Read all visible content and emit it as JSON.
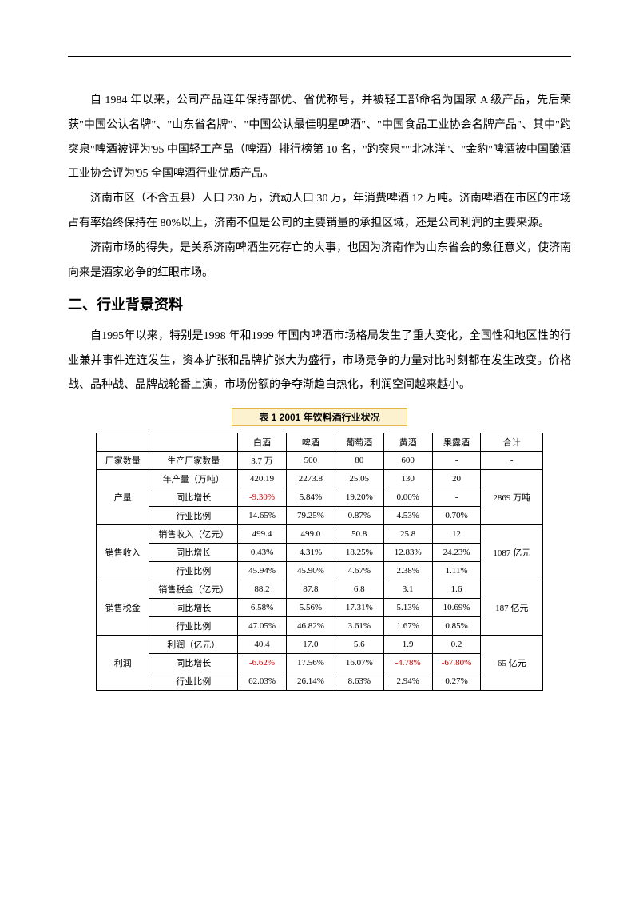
{
  "paragraphs": {
    "p1": "自 1984 年以来，公司产品连年保持部优、省优称号，并被轻工部命名为国家 A 级产品，先后荣获\"中国公认名牌\"、\"山东省名牌\"、\"中国公认最佳明星啤酒\"、\"中国食品工业协会名牌产品\"、其中\"趵突泉\"啤酒被评为'95 中国轻工产品（啤酒）排行榜第 10 名，\"趵突泉\"'\"北冰洋\"、\"金豹\"啤酒被中国酿酒工业协会评为'95 全国啤酒行业优质产品。",
    "p2": "济南市区（不含五县）人口 230 万，流动人口 30 万，年消费啤酒 12 万吨。济南啤酒在市区的市场占有率始终保持在 80%以上，济南不但是公司的主要销量的承担区域，还是公司利润的主要来源。",
    "p3": "济南市场的得失，是关系济南啤酒生死存亡的大事，也因为济南作为山东省会的象征意义，使济南向来是酒家必争的红眼市场。",
    "p4": "自1995年以来，特别是1998  年和1999  年国内啤酒市场格局发生了重大变化，全国性和地区性的行业兼并事件连连发生，资本扩张和品牌扩张大为盛行，市场竞争的力量对比时刻都在发生改变。价格战、品种战、品牌战轮番上演，市场份额的争夺渐趋白热化，利润空间越来越小。"
  },
  "heading": "二、行业背景资料",
  "table": {
    "title": "表 1  2001 年饮料酒行业状况",
    "columns": [
      "白酒",
      "啤酒",
      "葡萄酒",
      "黄酒",
      "果露酒",
      "合计"
    ],
    "groups": [
      {
        "label": "厂家数量",
        "rows": [
          {
            "sub": "生产厂家数量",
            "cells": [
              "3.7 万",
              "500",
              "80",
              "600",
              "-",
              "-"
            ],
            "neg": []
          }
        ]
      },
      {
        "label": "产量",
        "total": "2869 万吨",
        "rows": [
          {
            "sub": "年产量（万吨）",
            "cells": [
              "420.19",
              "2273.8",
              "25.05",
              "130",
              "20"
            ],
            "neg": []
          },
          {
            "sub": "同比增长",
            "cells": [
              "-9.30%",
              "5.84%",
              "19.20%",
              "0.00%",
              "-"
            ],
            "neg": [
              0
            ]
          },
          {
            "sub": "行业比例",
            "cells": [
              "14.65%",
              "79.25%",
              "0.87%",
              "4.53%",
              "0.70%"
            ],
            "neg": []
          }
        ]
      },
      {
        "label": "销售收入",
        "total": "1087 亿元",
        "rows": [
          {
            "sub": "销售收入（亿元）",
            "cells": [
              "499.4",
              "499.0",
              "50.8",
              "25.8",
              "12"
            ],
            "neg": []
          },
          {
            "sub": "同比增长",
            "cells": [
              "0.43%",
              "4.31%",
              "18.25%",
              "12.83%",
              "24.23%"
            ],
            "neg": []
          },
          {
            "sub": "行业比例",
            "cells": [
              "45.94%",
              "45.90%",
              "4.67%",
              "2.38%",
              "1.11%"
            ],
            "neg": []
          }
        ]
      },
      {
        "label": "销售税金",
        "total": "187 亿元",
        "rows": [
          {
            "sub": "销售税金（亿元）",
            "cells": [
              "88.2",
              "87.8",
              "6.8",
              "3.1",
              "1.6"
            ],
            "neg": []
          },
          {
            "sub": "同比增长",
            "cells": [
              "6.58%",
              "5.56%",
              "17.31%",
              "5.13%",
              "10.69%"
            ],
            "neg": []
          },
          {
            "sub": "行业比例",
            "cells": [
              "47.05%",
              "46.82%",
              "3.61%",
              "1.67%",
              "0.85%"
            ],
            "neg": []
          }
        ]
      },
      {
        "label": "利润",
        "total": "65 亿元",
        "rows": [
          {
            "sub": "利润（亿元）",
            "cells": [
              "40.4",
              "17.0",
              "5.6",
              "1.9",
              "0.2"
            ],
            "neg": []
          },
          {
            "sub": "同比增长",
            "cells": [
              "-6.62%",
              "17.56%",
              "16.07%",
              "-4.78%",
              "-67.80%"
            ],
            "neg": [
              0,
              3,
              4
            ]
          },
          {
            "sub": "行业比例",
            "cells": [
              "62.03%",
              "26.14%",
              "8.63%",
              "2.94%",
              "0.27%"
            ],
            "neg": []
          }
        ]
      }
    ]
  }
}
